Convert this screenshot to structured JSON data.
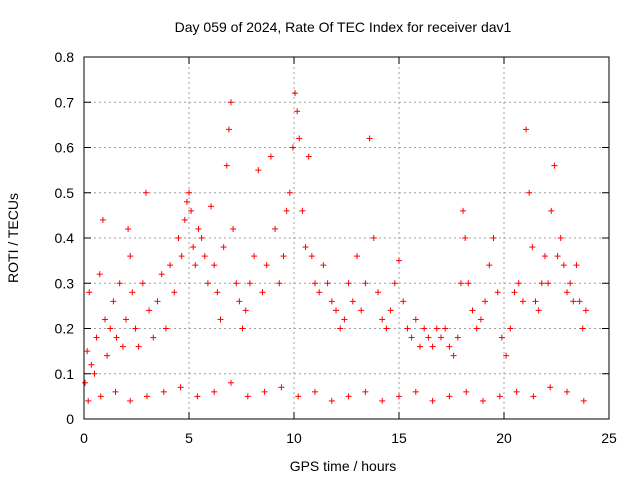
{
  "chart_data": {
    "type": "scatter",
    "title": "Day 059 of 2024, Rate Of TEC Index for receiver dav1",
    "xlabel": "GPS time / hours",
    "ylabel": "ROTI / TECUs",
    "xlim": [
      0,
      25
    ],
    "ylim": [
      0,
      0.8
    ],
    "xticks": [
      0,
      5,
      10,
      15,
      20,
      25
    ],
    "yticks": [
      0,
      0.1,
      0.2,
      0.3,
      0.4,
      0.5,
      0.6,
      0.7,
      0.8
    ],
    "xtick_labels": [
      "0",
      "5",
      "10",
      "15",
      "20",
      "25"
    ],
    "ytick_labels": [
      "0",
      "0.1",
      "0.2",
      "0.3",
      "0.4",
      "0.5",
      "0.6",
      "0.7",
      "0.8"
    ],
    "grid": true,
    "legend": "none",
    "marker": "plus",
    "series_color": "#ff0000",
    "series": [
      {
        "x": [
          0.05,
          0.15,
          0.25,
          0.35,
          0.5,
          0.6,
          0.75,
          0.9,
          1.0,
          1.1,
          1.25,
          1.4,
          1.55,
          1.7,
          1.85,
          2.0,
          2.1,
          2.2,
          2.3,
          2.45,
          2.6,
          2.8,
          2.95,
          3.1,
          3.3,
          3.5,
          3.7,
          3.9,
          4.1,
          4.3,
          4.5,
          4.65,
          4.8,
          4.9,
          5.0,
          5.1,
          5.2,
          5.3,
          5.45,
          5.6,
          5.75,
          5.9,
          6.05,
          6.2,
          6.35,
          6.5,
          6.65,
          6.8,
          6.9,
          7.0,
          7.1,
          7.25,
          7.4,
          7.55,
          7.7,
          7.9,
          8.1,
          8.3,
          8.5,
          8.7,
          8.9,
          9.1,
          9.3,
          9.5,
          9.65,
          9.8,
          9.95,
          10.05,
          10.15,
          10.25,
          10.4,
          10.55,
          10.7,
          10.85,
          11.0,
          11.2,
          11.4,
          11.6,
          11.8,
          12.0,
          12.2,
          12.4,
          12.6,
          12.8,
          13.0,
          13.2,
          13.4,
          13.6,
          13.8,
          14.0,
          14.2,
          14.4,
          14.6,
          14.8,
          15.0,
          15.2,
          15.4,
          15.6,
          15.8,
          16.0,
          16.2,
          16.4,
          16.6,
          16.8,
          17.0,
          17.2,
          17.4,
          17.6,
          17.8,
          17.95,
          18.05,
          18.15,
          18.3,
          18.5,
          18.7,
          18.9,
          19.1,
          19.3,
          19.5,
          19.7,
          19.9,
          20.1,
          20.3,
          20.5,
          20.7,
          20.9,
          21.05,
          21.2,
          21.35,
          21.5,
          21.65,
          21.8,
          21.95,
          22.1,
          22.25,
          22.4,
          22.55,
          22.7,
          22.85,
          23.0,
          23.15,
          23.3,
          23.45,
          23.6,
          23.75,
          23.9,
          0.2,
          0.8,
          1.5,
          2.2,
          3.0,
          3.8,
          4.6,
          5.4,
          6.2,
          7.0,
          7.8,
          8.6,
          9.4,
          10.2,
          11.0,
          11.8,
          12.6,
          13.4,
          14.2,
          15.0,
          15.8,
          16.6,
          17.4,
          18.2,
          19.0,
          19.8,
          20.6,
          21.4,
          22.2,
          23.0,
          23.8
        ],
        "y": [
          0.08,
          0.15,
          0.28,
          0.12,
          0.1,
          0.18,
          0.32,
          0.44,
          0.22,
          0.14,
          0.2,
          0.26,
          0.18,
          0.3,
          0.16,
          0.22,
          0.42,
          0.36,
          0.28,
          0.2,
          0.16,
          0.3,
          0.5,
          0.24,
          0.18,
          0.26,
          0.32,
          0.2,
          0.34,
          0.28,
          0.4,
          0.36,
          0.44,
          0.48,
          0.5,
          0.46,
          0.38,
          0.34,
          0.42,
          0.4,
          0.36,
          0.3,
          0.47,
          0.34,
          0.28,
          0.22,
          0.38,
          0.56,
          0.64,
          0.7,
          0.42,
          0.3,
          0.26,
          0.2,
          0.24,
          0.3,
          0.36,
          0.55,
          0.28,
          0.34,
          0.58,
          0.42,
          0.3,
          0.36,
          0.46,
          0.5,
          0.6,
          0.72,
          0.68,
          0.62,
          0.46,
          0.38,
          0.58,
          0.36,
          0.3,
          0.28,
          0.34,
          0.3,
          0.26,
          0.24,
          0.2,
          0.22,
          0.3,
          0.26,
          0.36,
          0.24,
          0.3,
          0.62,
          0.4,
          0.28,
          0.22,
          0.2,
          0.24,
          0.3,
          0.35,
          0.26,
          0.2,
          0.18,
          0.22,
          0.16,
          0.2,
          0.18,
          0.16,
          0.2,
          0.18,
          0.2,
          0.16,
          0.14,
          0.18,
          0.3,
          0.46,
          0.4,
          0.3,
          0.24,
          0.2,
          0.22,
          0.26,
          0.34,
          0.4,
          0.28,
          0.18,
          0.14,
          0.2,
          0.28,
          0.3,
          0.26,
          0.64,
          0.5,
          0.38,
          0.26,
          0.24,
          0.3,
          0.36,
          0.3,
          0.46,
          0.56,
          0.36,
          0.4,
          0.34,
          0.28,
          0.3,
          0.26,
          0.34,
          0.26,
          0.2,
          0.24,
          0.04,
          0.05,
          0.06,
          0.04,
          0.05,
          0.06,
          0.07,
          0.05,
          0.06,
          0.08,
          0.05,
          0.06,
          0.07,
          0.05,
          0.06,
          0.04,
          0.05,
          0.06,
          0.04,
          0.05,
          0.06,
          0.04,
          0.05,
          0.06,
          0.04,
          0.05,
          0.06,
          0.05,
          0.07,
          0.06,
          0.04
        ]
      }
    ]
  }
}
